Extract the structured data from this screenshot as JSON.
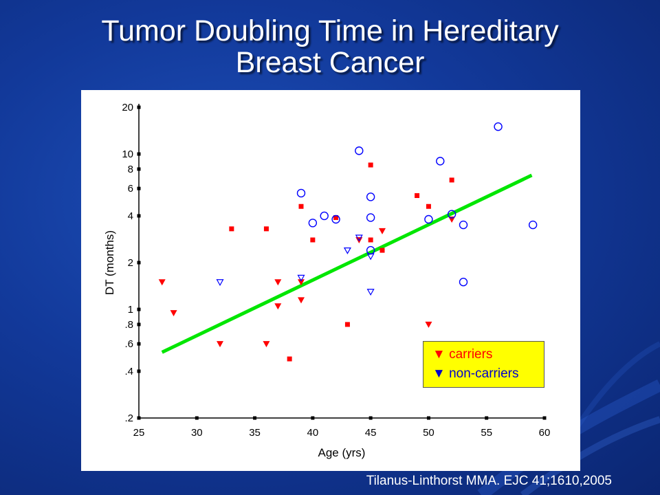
{
  "slide": {
    "title_line1": "Tumor Doubling Time in Hereditary",
    "title_line2": "Breast Cancer",
    "citation": "Tilanus-Linthorst MMA. EJC 41;1610,2005"
  },
  "chart_data": {
    "type": "scatter",
    "title": "",
    "xlabel": "Age (yrs)",
    "ylabel": "DT (months)",
    "xlim": [
      25,
      60
    ],
    "ylim": [
      0.2,
      20
    ],
    "y_scale": "log",
    "grid": false,
    "x_ticks": [
      25,
      30,
      35,
      40,
      45,
      50,
      55,
      60
    ],
    "y_ticks": [
      {
        "value": 0.2,
        "label": ".2"
      },
      {
        "value": 0.4,
        "label": ".4"
      },
      {
        "value": 0.6,
        "label": ".6"
      },
      {
        "value": 0.8,
        "label": ".8"
      },
      {
        "value": 1,
        "label": "1"
      },
      {
        "value": 2,
        "label": "2"
      },
      {
        "value": 4,
        "label": "4"
      },
      {
        "value": 6,
        "label": "6"
      },
      {
        "value": 8,
        "label": "8"
      },
      {
        "value": 10,
        "label": "10"
      },
      {
        "value": 20,
        "label": "20"
      }
    ],
    "legend_position": "bottom-right",
    "legend": [
      {
        "marker": "▼",
        "label": "carriers",
        "color": "#ff0000"
      },
      {
        "marker": "▼",
        "label": "non-carriers",
        "color": "#0000cc"
      }
    ],
    "series": [
      {
        "marker": "filled-triangle-down",
        "color": "#ff0000",
        "points": [
          [
            27,
            1.5
          ],
          [
            28,
            0.95
          ],
          [
            32,
            0.6
          ],
          [
            36,
            0.6
          ],
          [
            37,
            1.5
          ],
          [
            37,
            1.05
          ],
          [
            39,
            1.5
          ],
          [
            39,
            1.15
          ],
          [
            44,
            2.8
          ],
          [
            46,
            3.2
          ],
          [
            50,
            0.8
          ],
          [
            52,
            3.8
          ]
        ]
      },
      {
        "marker": "filled-square",
        "color": "#ff0000",
        "points": [
          [
            33,
            3.3
          ],
          [
            36,
            3.3
          ],
          [
            38,
            0.48
          ],
          [
            39,
            4.6
          ],
          [
            40,
            2.8
          ],
          [
            42,
            3.9
          ],
          [
            43,
            0.8
          ],
          [
            45,
            8.5
          ],
          [
            45,
            2.8
          ],
          [
            46,
            2.4
          ],
          [
            49,
            5.4
          ],
          [
            50,
            4.6
          ],
          [
            52,
            6.8
          ]
        ]
      },
      {
        "marker": "open-circle",
        "color": "#0000ff",
        "points": [
          [
            39,
            5.6
          ],
          [
            40,
            3.6
          ],
          [
            41,
            4.0
          ],
          [
            42,
            3.8
          ],
          [
            44,
            10.5
          ],
          [
            45,
            5.3
          ],
          [
            45,
            3.9
          ],
          [
            45,
            2.4
          ],
          [
            50,
            3.8
          ],
          [
            51,
            9.0
          ],
          [
            52,
            4.1
          ],
          [
            53,
            3.5
          ],
          [
            53,
            1.5
          ],
          [
            56,
            15
          ],
          [
            59,
            3.5
          ]
        ]
      },
      {
        "marker": "open-triangle-down",
        "color": "#0000ff",
        "points": [
          [
            32,
            1.5
          ],
          [
            39,
            1.6
          ],
          [
            43,
            2.4
          ],
          [
            44,
            2.9
          ],
          [
            45,
            2.2
          ],
          [
            45,
            1.3
          ]
        ]
      }
    ],
    "trend_line": {
      "color": "#00e600",
      "from": [
        27,
        0.53
      ],
      "to": [
        58.9,
        7.3
      ]
    }
  }
}
